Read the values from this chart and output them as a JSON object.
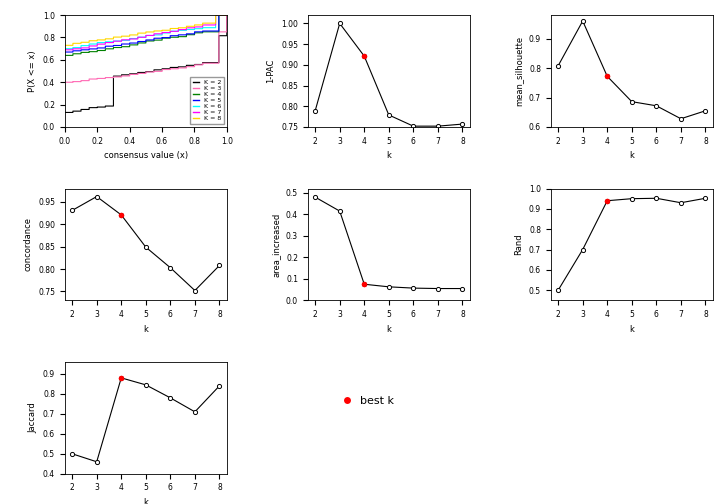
{
  "k_values": [
    2,
    3,
    4,
    5,
    6,
    7,
    8
  ],
  "pac_1": [
    0.789,
    1.0,
    0.921,
    0.779,
    0.752,
    0.752,
    0.757
  ],
  "pac_best_k": 4,
  "mean_sil": [
    0.808,
    0.96,
    0.772,
    0.686,
    0.672,
    0.628,
    0.655
  ],
  "mean_sil_best_k": 4,
  "concordance": [
    0.931,
    0.962,
    0.921,
    0.849,
    0.803,
    0.752,
    0.808
  ],
  "concordance_best_k": 4,
  "area_increased": [
    0.48,
    0.415,
    0.075,
    0.063,
    0.057,
    0.055,
    0.055
  ],
  "area_increased_best_k": 4,
  "rand": [
    0.5,
    0.7,
    0.94,
    0.95,
    0.952,
    0.93,
    0.952
  ],
  "rand_best_k": 4,
  "jaccard": [
    0.5,
    0.46,
    0.88,
    0.845,
    0.78,
    0.71,
    0.84
  ],
  "jaccard_best_k": 4,
  "ecdf_colors": [
    "black",
    "#FF69B4",
    "green",
    "blue",
    "cyan",
    "magenta",
    "gold"
  ],
  "ecdf_k_labels": [
    "K = 2",
    "K = 3",
    "K = 4",
    "K = 5",
    "K = 6",
    "K = 7",
    "K = 8"
  ],
  "ecdf_data": {
    "k2": {
      "x": [
        0.0,
        0.0,
        0.3,
        0.3,
        0.95,
        0.95,
        1.0,
        1.0
      ],
      "y": [
        0.0,
        0.13,
        0.13,
        0.38,
        0.38,
        0.62,
        0.62,
        1.0
      ]
    },
    "k3": {
      "x": [
        0.0,
        0.0,
        0.95,
        0.95,
        1.0,
        1.0
      ],
      "y": [
        0.0,
        0.4,
        0.4,
        0.68,
        0.68,
        1.0
      ]
    },
    "k4": {
      "x": [
        0.0,
        0.0,
        0.95,
        0.95,
        1.0,
        1.0
      ],
      "y": [
        0.0,
        0.64,
        0.64,
        0.82,
        0.82,
        1.0
      ]
    },
    "k5": {
      "x": [
        0.0,
        0.0,
        0.95,
        0.95,
        1.0,
        1.0
      ],
      "y": [
        0.0,
        0.67,
        0.67,
        0.86,
        0.86,
        1.0
      ]
    },
    "k6": {
      "x": [
        0.0,
        0.0,
        0.93,
        0.93,
        1.0,
        1.0
      ],
      "y": [
        0.0,
        0.7,
        0.7,
        0.88,
        0.88,
        1.0
      ]
    },
    "k7": {
      "x": [
        0.0,
        0.0,
        0.93,
        0.93,
        1.0,
        1.0
      ],
      "y": [
        0.0,
        0.69,
        0.69,
        0.9,
        0.9,
        1.0
      ]
    },
    "k8": {
      "x": [
        0.0,
        0.0,
        0.93,
        0.93,
        1.0,
        1.0
      ],
      "y": [
        0.0,
        0.73,
        0.73,
        0.93,
        0.93,
        1.0
      ]
    }
  }
}
